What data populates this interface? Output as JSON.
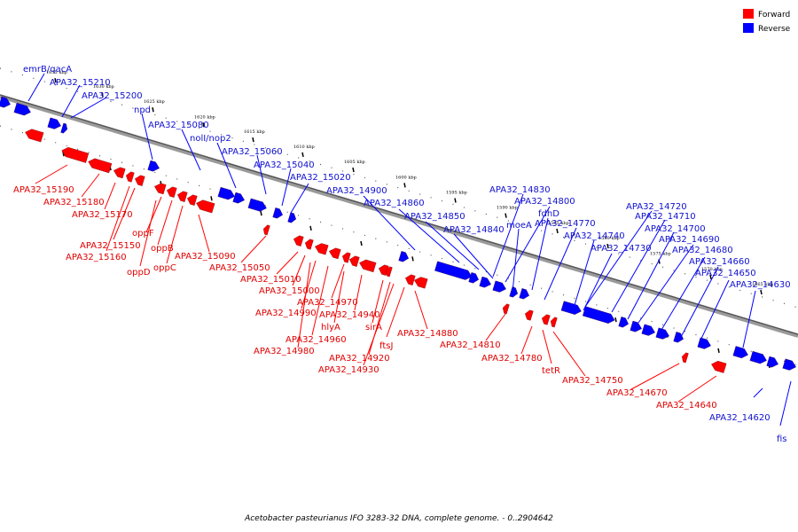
{
  "caption": "Acetobacter pasteurianus IFO 3283-32 DNA, complete genome. - 0..2904642",
  "legend": [
    {
      "label": "Forward",
      "color": "#ff0000"
    },
    {
      "label": "Reverse",
      "color": "#0000ff"
    }
  ],
  "colors": {
    "forward": "#ff0000",
    "reverse": "#0000ff",
    "forward_label": "#e00000",
    "reverse_label": "#1010d0"
  },
  "scale_ticks": [
    "1635 kbp",
    "1630 kbp",
    "1625 kbp",
    "1620 kbp",
    "1615 kbp",
    "1610 kbp",
    "1605 kbp",
    "1600 kbp",
    "1595 kbp",
    "1590 kbp",
    "1585 kbp",
    "1580 kbp",
    "1575 kbp",
    "1570 kbp",
    "1565 kbp"
  ],
  "reverse_labels": [
    "emrB/qacA",
    "APA32_15210",
    "APA32_15200",
    "npd",
    "APA32_15080",
    "nolI/nop2",
    "APA32_15060",
    "APA32_15040",
    "APA32_15020",
    "APA32_14900",
    "APA32_14860",
    "APA32_14850",
    "APA32_14840",
    "APA32_14830",
    "APA32_14800",
    "fdhD",
    "moeA",
    "APA32_14770",
    "APA32_14740",
    "APA32_14730",
    "APA32_14720",
    "APA32_14710",
    "APA32_14700",
    "APA32_14690",
    "APA32_14680",
    "APA32_14660",
    "APA32_14650",
    "APA32_14630",
    "APA32_14620",
    "fis"
  ],
  "forward_labels": [
    "APA32_15190",
    "APA32_15180",
    "APA32_15170",
    "APA32_15150",
    "APA32_15160",
    "oppF",
    "oppB",
    "oppD",
    "oppC",
    "APA32_15090",
    "APA32_15050",
    "APA32_15010",
    "APA32_15000",
    "APA32_14990",
    "APA32_14970",
    "APA32_14940",
    "hlyA",
    "APA32_14960",
    "APA32_14980",
    "sirA",
    "APA32_14920",
    "APA32_14930",
    "ftsJ",
    "APA32_14880",
    "APA32_14810",
    "APA32_14780",
    "tetR",
    "APA32_14750",
    "APA32_14670",
    "APA32_14640"
  ]
}
